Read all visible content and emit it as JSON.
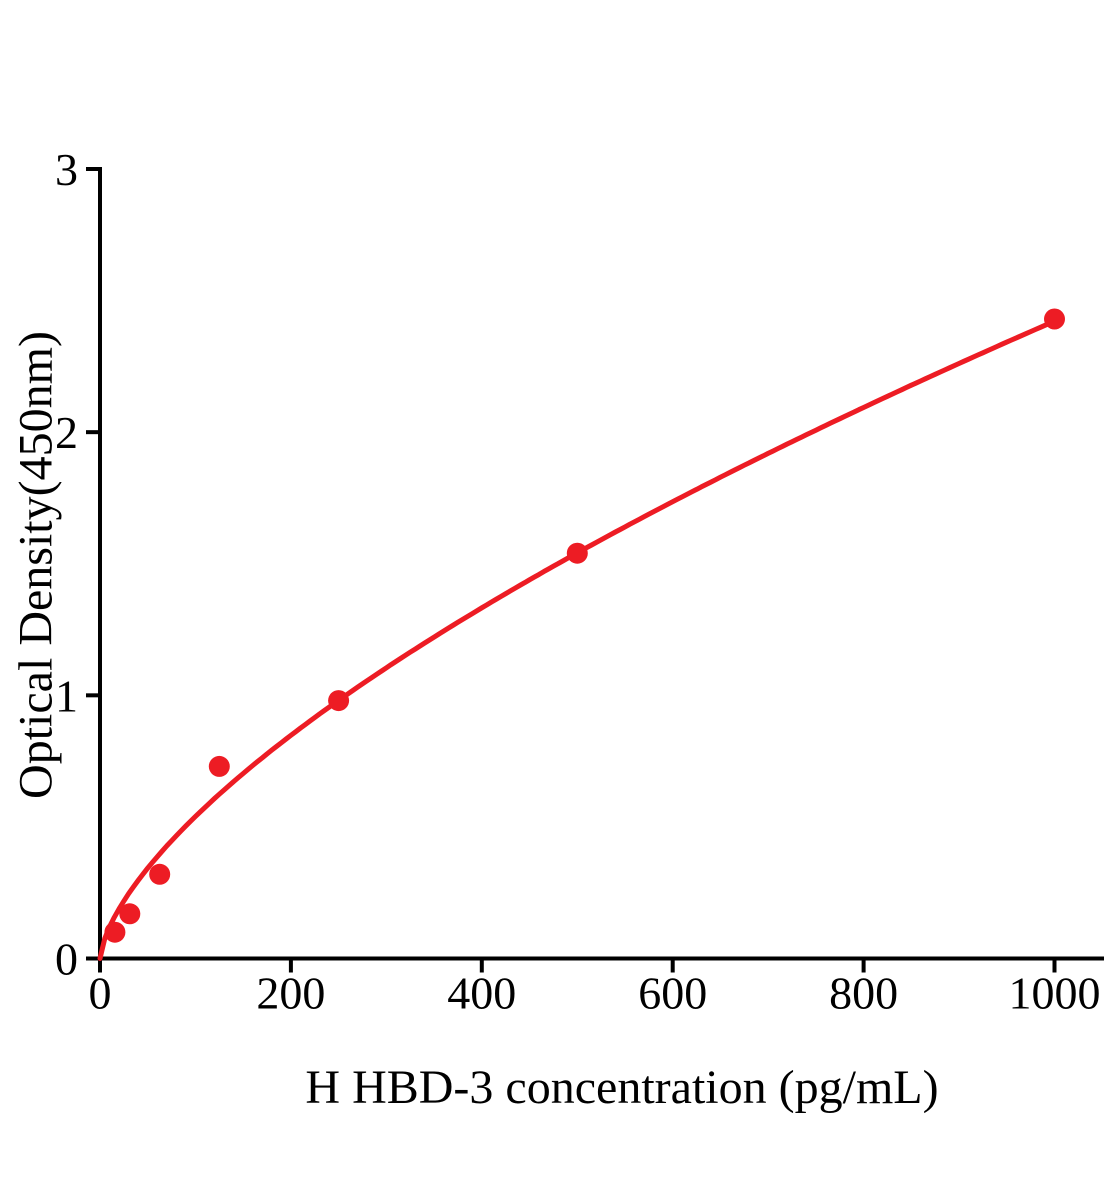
{
  "chart_data": {
    "type": "scatter",
    "subtype": "standard-curve-with-fitted-line",
    "title": "",
    "xlabel": "H HBD-3 concentration (pg/mL)",
    "ylabel": "Optical Density(450nm)",
    "x": [
      15.6,
      31.2,
      62.5,
      125,
      250,
      500,
      1000
    ],
    "y": [
      0.1,
      0.17,
      0.32,
      0.73,
      0.98,
      1.54,
      2.43
    ],
    "x_ticks": [
      0,
      200,
      400,
      600,
      800,
      1000
    ],
    "x_tick_labels": [
      "0",
      "200",
      "400",
      "600",
      "800",
      "1000"
    ],
    "y_ticks": [
      0,
      1,
      2,
      3
    ],
    "y_tick_labels": [
      "0",
      "1",
      "2",
      "3"
    ],
    "xlim": [
      0,
      1052
    ],
    "ylim": [
      0,
      3
    ],
    "grid": false,
    "legend": "none",
    "marker_color": "#ED1C24",
    "line_color": "#ED1C24",
    "axis_color": "#000000",
    "fit": {
      "type": "power",
      "a": 0.0268,
      "b": 0.652,
      "range": [
        0,
        1000
      ]
    }
  }
}
